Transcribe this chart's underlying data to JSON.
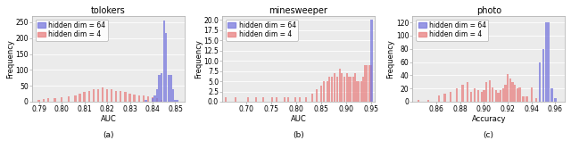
{
  "subplots": [
    {
      "title": "tolokers",
      "xlabel": "AUC",
      "ylabel": "Frequency",
      "label_bottom": "(a)",
      "xlim": [
        0.787,
        0.854
      ],
      "ylim": [
        0,
        270
      ],
      "yticks": [
        0,
        50,
        100,
        150,
        200,
        250
      ],
      "xticks": [
        0.79,
        0.8,
        0.81,
        0.82,
        0.83,
        0.84,
        0.85
      ],
      "blue_centers": [
        0.837,
        0.84,
        0.841,
        0.842,
        0.843,
        0.844,
        0.845,
        0.846,
        0.847,
        0.848,
        0.849,
        0.85,
        0.851
      ],
      "blue_heights": [
        5,
        10,
        20,
        40,
        85,
        90,
        255,
        215,
        85,
        85,
        40,
        5,
        5
      ],
      "red_centers": [
        0.79,
        0.792,
        0.794,
        0.797,
        0.8,
        0.803,
        0.806,
        0.808,
        0.81,
        0.812,
        0.814,
        0.816,
        0.818,
        0.82,
        0.822,
        0.824,
        0.826,
        0.828,
        0.83,
        0.832,
        0.834,
        0.836,
        0.838,
        0.84,
        0.842,
        0.844
      ],
      "red_heights": [
        5,
        8,
        10,
        12,
        15,
        18,
        20,
        25,
        30,
        35,
        38,
        40,
        45,
        40,
        38,
        35,
        33,
        30,
        25,
        22,
        20,
        20,
        18,
        15,
        12,
        5
      ],
      "bw": 0.001
    },
    {
      "title": "minesweeper",
      "xlabel": "AUC",
      "ylabel": "Frequency",
      "label_bottom": "(b)",
      "xlim": [
        0.653,
        0.957
      ],
      "ylim": [
        0,
        21
      ],
      "yticks": [
        0,
        2.5,
        5.0,
        7.5,
        10.0,
        12.5,
        15.0,
        17.5,
        20.0
      ],
      "xticks": [
        0.7,
        0.75,
        0.8,
        0.85,
        0.9,
        0.95
      ],
      "blue_centers": [
        0.951
      ],
      "blue_heights": [
        20
      ],
      "red_centers": [
        0.66,
        0.68,
        0.705,
        0.72,
        0.735,
        0.752,
        0.762,
        0.778,
        0.785,
        0.798,
        0.808,
        0.82,
        0.833,
        0.842,
        0.85,
        0.856,
        0.862,
        0.867,
        0.872,
        0.877,
        0.882,
        0.887,
        0.892,
        0.897,
        0.902,
        0.906,
        0.91,
        0.914,
        0.918,
        0.922,
        0.926,
        0.93,
        0.934,
        0.938,
        0.942,
        0.946,
        0.95
      ],
      "red_heights": [
        1,
        1,
        1,
        1,
        1,
        1,
        1,
        1,
        1,
        1,
        1,
        1,
        2,
        3,
        4,
        5,
        5,
        6,
        6,
        7,
        6,
        8,
        7,
        6,
        7,
        6,
        6,
        6,
        7,
        5,
        5,
        5,
        6,
        9,
        9,
        9,
        9
      ],
      "bw": 0.004
    },
    {
      "title": "photo",
      "xlabel": "Accuracy",
      "ylabel": "Frequency",
      "label_bottom": "(c)",
      "xlim": [
        0.84,
        0.968
      ],
      "ylim": [
        0,
        130
      ],
      "yticks": [
        0,
        20,
        40,
        60,
        80,
        100,
        120
      ],
      "xticks": [
        0.86,
        0.88,
        0.9,
        0.92,
        0.94,
        0.96
      ],
      "blue_centers": [
        0.947,
        0.95,
        0.952,
        0.954,
        0.957,
        0.96
      ],
      "blue_heights": [
        60,
        80,
        120,
        120,
        20,
        5
      ],
      "red_centers": [
        0.845,
        0.853,
        0.862,
        0.867,
        0.872,
        0.877,
        0.882,
        0.886,
        0.889,
        0.892,
        0.895,
        0.898,
        0.9,
        0.902,
        0.905,
        0.907,
        0.91,
        0.912,
        0.914,
        0.916,
        0.918,
        0.92,
        0.922,
        0.924,
        0.926,
        0.928,
        0.93,
        0.933,
        0.936,
        0.94,
        0.944
      ],
      "red_heights": [
        3,
        3,
        10,
        12,
        15,
        20,
        25,
        30,
        15,
        20,
        18,
        15,
        17,
        30,
        33,
        22,
        18,
        14,
        17,
        20,
        25,
        42,
        35,
        30,
        25,
        20,
        22,
        8,
        8,
        22,
        5
      ],
      "bw": 0.002
    }
  ],
  "blue_color": "#7777dd",
  "red_color": "#e88080",
  "legend_labels": [
    "hidden dim = 64",
    "hidden dim = 4"
  ],
  "title_fontsize": 7,
  "label_fontsize": 6,
  "tick_fontsize": 5.5,
  "legend_fontsize": 5.5,
  "bg_color": "#ebebeb"
}
